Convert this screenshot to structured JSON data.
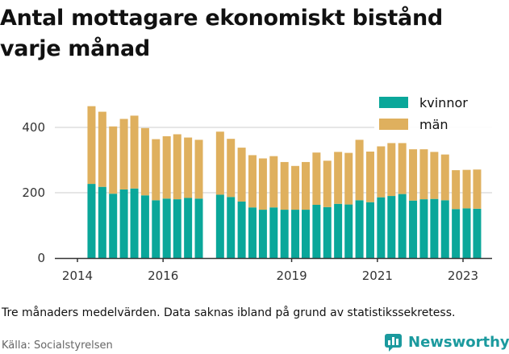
{
  "title_lines": [
    "Antal mottagare ekonomiskt bistånd",
    "varje månad"
  ],
  "note": "Tre månaders medelvärden. Data saknas ibland på grund av statistikssekretess.",
  "source": "Källa: Socialstyrelsen",
  "brand": {
    "name": "Newsworthy",
    "icon": "newsworthy-logo-icon",
    "color": "#1b9a9e"
  },
  "colors": {
    "kvinnor": "#0aa79a",
    "man": "#dfb05e",
    "grid": "#dddddd",
    "axis": "#333333"
  },
  "chart_data": {
    "type": "bar",
    "stacked": true,
    "x_ticks": [
      "2014",
      "2016",
      "2019",
      "2021",
      "2023"
    ],
    "y_ticks": [
      0,
      200,
      400
    ],
    "ylim": [
      0,
      500
    ],
    "legend_position": "top-right",
    "grid": true,
    "series": [
      {
        "name": "kvinnor",
        "x": [
          "2014-05",
          "2014-08",
          "2014-11",
          "2015-02",
          "2015-05",
          "2015-08",
          "2015-11",
          "2016-02",
          "2016-05",
          "2016-08",
          "2016-11",
          "2017-05",
          "2017-08",
          "2017-11",
          "2018-02",
          "2018-05",
          "2018-08",
          "2018-11",
          "2019-02",
          "2019-05",
          "2019-08",
          "2019-11",
          "2020-02",
          "2020-05",
          "2020-08",
          "2020-11",
          "2021-02",
          "2021-05",
          "2021-08",
          "2021-11",
          "2022-02",
          "2022-05",
          "2022-08",
          "2022-11",
          "2023-02",
          "2023-05"
        ],
        "values": [
          227,
          218,
          197,
          210,
          213,
          192,
          177,
          182,
          180,
          184,
          182,
          194,
          187,
          173,
          155,
          148,
          155,
          148,
          148,
          148,
          163,
          156,
          166,
          164,
          177,
          171,
          186,
          190,
          196,
          176,
          180,
          181,
          177,
          150,
          152,
          151
        ]
      },
      {
        "name": "män",
        "x": [
          "2014-05",
          "2014-08",
          "2014-11",
          "2015-02",
          "2015-05",
          "2015-08",
          "2015-11",
          "2016-02",
          "2016-05",
          "2016-08",
          "2016-11",
          "2017-05",
          "2017-08",
          "2017-11",
          "2018-02",
          "2018-05",
          "2018-08",
          "2018-11",
          "2019-02",
          "2019-05",
          "2019-08",
          "2019-11",
          "2020-02",
          "2020-05",
          "2020-08",
          "2020-11",
          "2021-02",
          "2021-05",
          "2021-08",
          "2021-11",
          "2022-02",
          "2022-05",
          "2022-08",
          "2022-11",
          "2023-02",
          "2023-05"
        ],
        "values": [
          238,
          230,
          206,
          216,
          223,
          206,
          187,
          191,
          199,
          185,
          180,
          193,
          178,
          165,
          160,
          157,
          157,
          146,
          134,
          146,
          160,
          142,
          159,
          158,
          185,
          155,
          156,
          162,
          156,
          157,
          153,
          144,
          140,
          119,
          118,
          120
        ]
      }
    ]
  }
}
